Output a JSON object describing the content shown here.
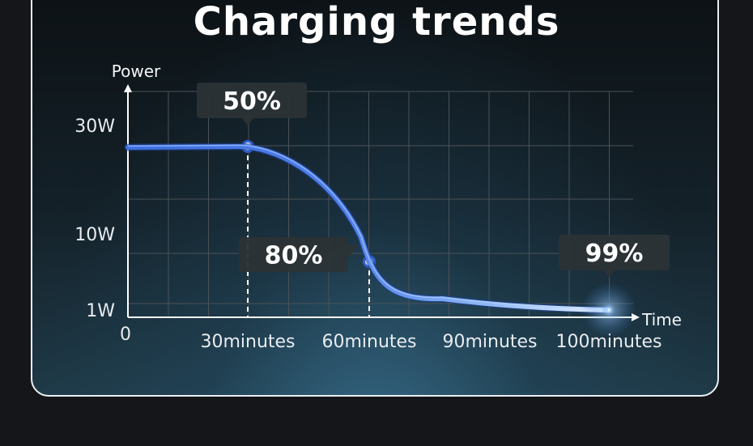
{
  "title": "Charging trends",
  "colors": {
    "curve": "#4a78e6",
    "curve_highlight": "#b9d4ff",
    "grid": "#4a5257",
    "axis": "#ffffff",
    "callout_bg": "#2b3336"
  },
  "chart_data": {
    "type": "line",
    "title": "Charging trends",
    "xlabel": "Time",
    "ylabel": "Power",
    "origin_label": "0",
    "x_ticks": [
      "30minutes",
      "60minutes",
      "90minutes",
      "100minutes"
    ],
    "y_ticks": [
      "1W",
      "10W",
      "30W"
    ],
    "grid": true,
    "series": [
      {
        "points": [
          {
            "x": 0,
            "y": 25
          },
          {
            "x": 30,
            "y": 25
          },
          {
            "x": 60,
            "y": 8
          },
          {
            "x": 120,
            "y": 1
          }
        ]
      }
    ],
    "annotations": [
      {
        "label": "50%",
        "x": 30,
        "y": 25
      },
      {
        "label": "80%",
        "x": 60,
        "y": 8
      },
      {
        "label": "99%",
        "x": 120,
        "y": 1
      }
    ]
  }
}
